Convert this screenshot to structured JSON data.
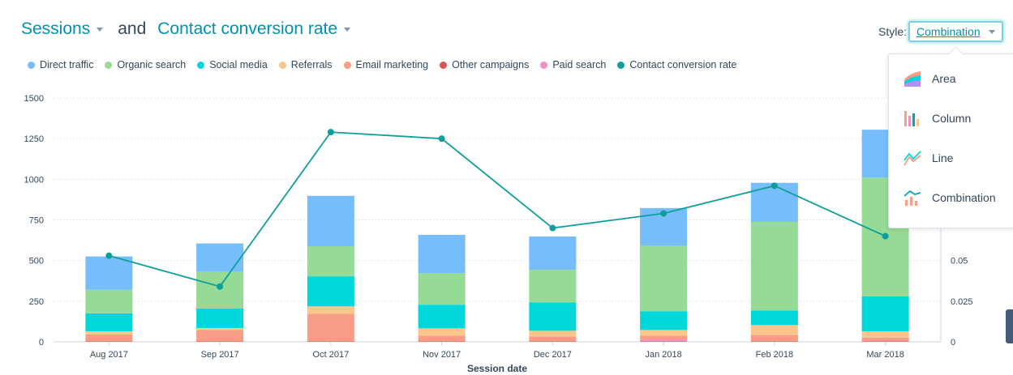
{
  "header": {
    "metric1": "Sessions",
    "connector": "and",
    "metric2": "Contact conversion rate",
    "style_label": "Style:",
    "style_value": "Combination"
  },
  "legend": [
    {
      "label": "Direct traffic",
      "color": "#76bdfc"
    },
    {
      "label": "Organic search",
      "color": "#95da95"
    },
    {
      "label": "Social media",
      "color": "#00d7da"
    },
    {
      "label": "Referrals",
      "color": "#fbc68b"
    },
    {
      "label": "Email marketing",
      "color": "#f89d86"
    },
    {
      "label": "Other campaigns",
      "color": "#d9534f"
    },
    {
      "label": "Paid search",
      "color": "#f08fc4"
    },
    {
      "label": "Contact conversion rate",
      "color": "#0f9f9b"
    }
  ],
  "dropdown": {
    "items": [
      {
        "label": "Area",
        "icon": "area-chart-icon"
      },
      {
        "label": "Column",
        "icon": "column-chart-icon"
      },
      {
        "label": "Line",
        "icon": "line-chart-icon"
      },
      {
        "label": "Combination",
        "icon": "combination-chart-icon"
      }
    ]
  },
  "chart_data": {
    "type": "bar",
    "stacked": true,
    "combo_line": true,
    "xlabel": "Session date",
    "ylabel_left": "",
    "ylim": [
      0,
      1500
    ],
    "yticks": [
      "0",
      "250",
      "500",
      "750",
      "1000",
      "1250",
      "1500"
    ],
    "ylim_right": [
      0,
      0.15
    ],
    "yticks_right": [
      "0",
      "0.025",
      "0.05"
    ],
    "categories": [
      "Aug 2017",
      "Sep 2017",
      "Oct 2017",
      "Nov 2017",
      "Dec 2017",
      "Jan 2018",
      "Feb 2018",
      "Mar 2018"
    ],
    "series": [
      {
        "name": "Other campaigns",
        "color": "#d9534f",
        "values": [
          3,
          3,
          3,
          3,
          3,
          3,
          3,
          3
        ]
      },
      {
        "name": "Paid search",
        "color": "#f08fc4",
        "values": [
          0,
          0,
          0,
          0,
          0,
          10,
          0,
          2
        ]
      },
      {
        "name": "Email marketing",
        "color": "#f89d86",
        "values": [
          42,
          70,
          170,
          35,
          30,
          25,
          40,
          20
        ]
      },
      {
        "name": "Referrals",
        "color": "#fbc68b",
        "values": [
          20,
          12,
          45,
          45,
          35,
          35,
          60,
          40
        ]
      },
      {
        "name": "Social media",
        "color": "#00d7da",
        "values": [
          110,
          120,
          185,
          145,
          175,
          115,
          90,
          215
        ]
      },
      {
        "name": "Organic search",
        "color": "#95da95",
        "values": [
          145,
          225,
          185,
          195,
          200,
          405,
          545,
          730
        ]
      },
      {
        "name": "Direct traffic",
        "color": "#76bdfc",
        "values": [
          205,
          175,
          310,
          235,
          205,
          230,
          240,
          295
        ]
      }
    ],
    "line_series": {
      "name": "Contact conversion rate",
      "color": "#0f9f9b",
      "values": [
        0.053,
        0.034,
        0.129,
        0.125,
        0.07,
        0.079,
        0.096,
        0.065
      ]
    }
  }
}
